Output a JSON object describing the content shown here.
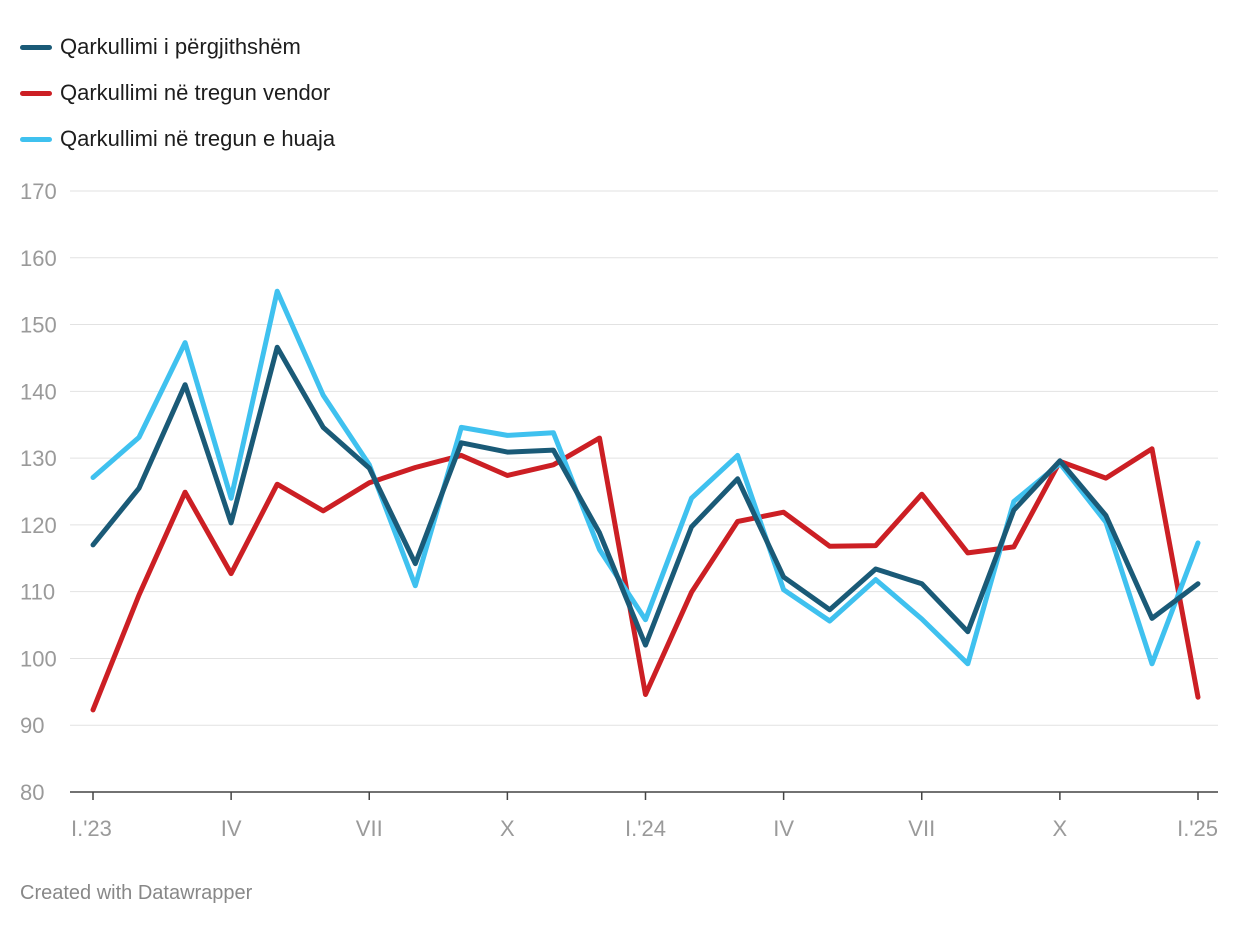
{
  "colors": {
    "background": "#ffffff",
    "grid": "#e2e2e2",
    "axis_text": "#9a9a9a",
    "footer_text": "#888888"
  },
  "footer": {
    "credit": "Created with Datawrapper"
  },
  "chart_data": {
    "type": "line",
    "title": "",
    "xlabel": "",
    "ylabel": "",
    "ylim": [
      80,
      170
    ],
    "y_ticks": [
      80,
      90,
      100,
      110,
      120,
      130,
      140,
      150,
      160,
      170
    ],
    "grid": true,
    "legend_position": "top-left",
    "x": [
      "I.'23",
      "II.'23",
      "III.'23",
      "IV.'23",
      "V.'23",
      "VI.'23",
      "VII.'23",
      "VIII.'23",
      "IX.'23",
      "X.'23",
      "XI.'23",
      "XII.'23",
      "I.'24",
      "II.'24",
      "III.'24",
      "IV.'24",
      "V.'24",
      "VI.'24",
      "VII.'24",
      "VIII.'24",
      "IX.'24",
      "X.'24",
      "XI.'24",
      "XII.'24",
      "I.'25"
    ],
    "x_ticks": [
      {
        "index": 0,
        "label": "I.'23"
      },
      {
        "index": 3,
        "label": "IV"
      },
      {
        "index": 6,
        "label": "VII"
      },
      {
        "index": 9,
        "label": "X"
      },
      {
        "index": 12,
        "label": "I.'24"
      },
      {
        "index": 15,
        "label": "IV"
      },
      {
        "index": 18,
        "label": "VII"
      },
      {
        "index": 21,
        "label": "X"
      },
      {
        "index": 24,
        "label": "I.'25"
      }
    ],
    "series": [
      {
        "name": "Qarkullimi i përgjithshëm",
        "color": "#1a5a77",
        "values": [
          117,
          125.5,
          141,
          120.3,
          146.6,
          134.6,
          128.5,
          114.2,
          132.3,
          130.9,
          131.2,
          118.8,
          102,
          119.7,
          126.9,
          112.2,
          107.3,
          113.4,
          111.2,
          104,
          122.2,
          129.6,
          121.4,
          106,
          111.2
        ]
      },
      {
        "name": "Qarkullimi në tregun vendor",
        "color": "#cc1f24",
        "values": [
          92.3,
          109.5,
          124.9,
          112.7,
          126.1,
          122.1,
          126.3,
          128.6,
          130.4,
          127.4,
          129,
          133,
          94.6,
          109.9,
          120.5,
          121.9,
          116.8,
          116.9,
          124.6,
          115.8,
          116.7,
          129.5,
          127,
          131.4,
          94.2
        ]
      },
      {
        "name": "Qarkullimi në tregun e huaja",
        "color": "#3fc1ef",
        "values": [
          127.1,
          133.1,
          147.3,
          124,
          155,
          139.4,
          129,
          110.9,
          134.6,
          133.4,
          133.8,
          116.3,
          105.8,
          124,
          130.4,
          110.3,
          105.6,
          111.8,
          105.9,
          99.2,
          123.5,
          129.2,
          120.4,
          99.2,
          117.3
        ]
      }
    ]
  }
}
